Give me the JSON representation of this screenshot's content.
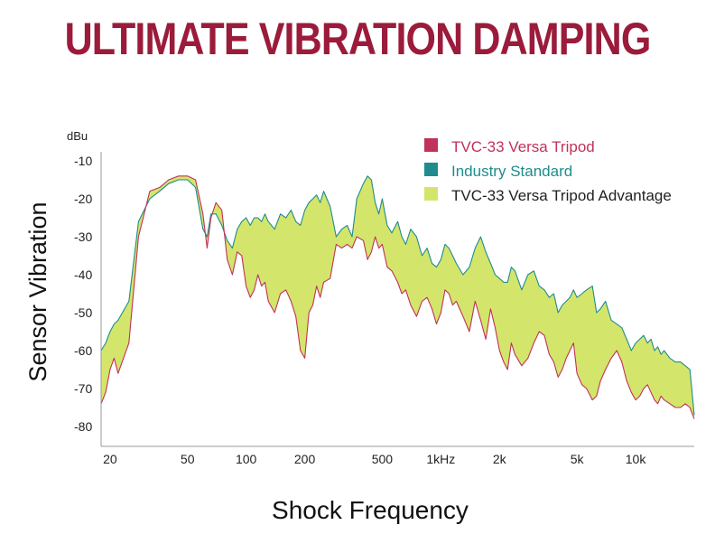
{
  "title": "ULTIMATE VIBRATION DAMPING",
  "colors": {
    "title": "#9b1b3b",
    "tvc": "#c0325b",
    "industry": "#1e8c8c",
    "advantage": "#d4e56b",
    "axis": "#999999"
  },
  "chart_data": {
    "type": "area",
    "ylabel": "Sensor Vibration",
    "xlabel": "Shock Frequency",
    "y_unit": "dBu",
    "y_ticks": [
      "-10",
      "-20",
      "-30",
      "-40",
      "-50",
      "-60",
      "-70",
      "-80"
    ],
    "x_ticks": [
      "20",
      "50",
      "100",
      "200",
      "500",
      "1kHz",
      "2k",
      "5k",
      "10k"
    ],
    "xlim_hz": [
      18,
      20000
    ],
    "ylim": [
      -82,
      -10
    ],
    "grid": false,
    "legend_position": "top-right",
    "legend": {
      "tvc": "TVC-33 Versa Tripod",
      "industry": "Industry Standard",
      "advantage": "TVC-33 Versa Tripod Advantage"
    },
    "x_hz": [
      18,
      19,
      20,
      21,
      22,
      25,
      28,
      32,
      36,
      40,
      45,
      50,
      55,
      60,
      63,
      66,
      70,
      75,
      80,
      85,
      90,
      95,
      100,
      105,
      110,
      115,
      120,
      125,
      130,
      140,
      150,
      160,
      170,
      180,
      190,
      200,
      210,
      220,
      230,
      240,
      250,
      270,
      290,
      310,
      330,
      350,
      370,
      400,
      420,
      440,
      460,
      480,
      500,
      530,
      560,
      600,
      630,
      660,
      700,
      750,
      800,
      850,
      900,
      950,
      1000,
      1050,
      1100,
      1150,
      1200,
      1300,
      1400,
      1500,
      1600,
      1700,
      1800,
      1900,
      2000,
      2100,
      2200,
      2300,
      2400,
      2600,
      2800,
      3000,
      3200,
      3400,
      3600,
      3800,
      4000,
      4200,
      4400,
      4600,
      4800,
      5000,
      5300,
      5600,
      6000,
      6300,
      6600,
      7000,
      7500,
      8000,
      8500,
      9000,
      9500,
      10000,
      10500,
      11000,
      11500,
      12000,
      12500,
      13000,
      13500,
      14000,
      15000,
      16000,
      17000,
      18000,
      19000,
      20000
    ],
    "series": [
      {
        "name": "TVC-33 Versa Tripod",
        "values": [
          -74,
          -71,
          -65,
          -62,
          -66,
          -58,
          -30,
          -18,
          -17,
          -15,
          -14,
          -14,
          -15,
          -24,
          -33,
          -25,
          -21,
          -23,
          -36,
          -40,
          -34,
          -35,
          -43,
          -46,
          -44,
          -40,
          -43,
          -42,
          -47,
          -50,
          -45,
          -44,
          -47,
          -51,
          -60,
          -62,
          -50,
          -48,
          -43,
          -46,
          -42,
          -41,
          -32,
          -33,
          -32,
          -33,
          -30,
          -31,
          -36,
          -34,
          -30,
          -33,
          -32,
          -38,
          -39,
          -42,
          -45,
          -44,
          -48,
          -51,
          -47,
          -46,
          -49,
          -53,
          -50,
          -44,
          -45,
          -48,
          -47,
          -51,
          -55,
          -47,
          -52,
          -57,
          -49,
          -54,
          -60,
          -63,
          -65,
          -58,
          -61,
          -64,
          -62,
          -58,
          -55,
          -56,
          -61,
          -63,
          -67,
          -65,
          -62,
          -60,
          -58,
          -66,
          -69,
          -70,
          -73,
          -72,
          -68,
          -65,
          -62,
          -60,
          -63,
          -68,
          -71,
          -73,
          -72,
          -70,
          -69,
          -71,
          -73,
          -74,
          -72,
          -73,
          -74,
          -75,
          -75,
          -74,
          -75,
          -78
        ]
      },
      {
        "name": "Industry Standard",
        "values": [
          -60,
          -58,
          -55,
          -53,
          -52,
          -47,
          -26,
          -20,
          -18,
          -16,
          -15,
          -15,
          -17,
          -28,
          -30,
          -24,
          -24,
          -27,
          -31,
          -33,
          -28,
          -26,
          -25,
          -27,
          -25,
          -25,
          -26,
          -24,
          -26,
          -28,
          -24,
          -25,
          -23,
          -26,
          -27,
          -23,
          -21,
          -20,
          -19,
          -21,
          -18,
          -22,
          -30,
          -28,
          -27,
          -30,
          -20,
          -16,
          -14,
          -15,
          -21,
          -24,
          -20,
          -27,
          -29,
          -26,
          -30,
          -32,
          -28,
          -30,
          -35,
          -33,
          -37,
          -38,
          -36,
          -32,
          -33,
          -35,
          -37,
          -40,
          -38,
          -33,
          -30,
          -34,
          -37,
          -40,
          -41,
          -42,
          -42,
          -38,
          -39,
          -44,
          -40,
          -39,
          -43,
          -44,
          -46,
          -45,
          -50,
          -48,
          -47,
          -46,
          -44,
          -46,
          -45,
          -44,
          -43,
          -50,
          -49,
          -47,
          -52,
          -53,
          -54,
          -57,
          -60,
          -58,
          -57,
          -56,
          -58,
          -57,
          -60,
          -59,
          -61,
          -60,
          -62,
          -63,
          -63,
          -64,
          -65,
          -77
        ]
      }
    ]
  }
}
